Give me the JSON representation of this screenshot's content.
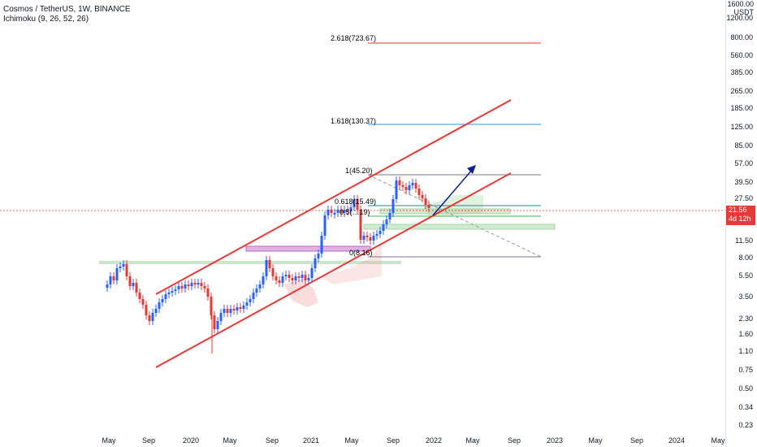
{
  "header": {
    "title": "Cosmos / TetherUS, 1W, BINANCE",
    "indicator": "Ichimoku (9, 26, 52, 26)"
  },
  "price_axis": {
    "unit_top": "1600.00",
    "unit_label": "USDT",
    "ticks": [
      "1200.00",
      "800.00",
      "560.00",
      "385.00",
      "265.00",
      "185.00",
      "125.00",
      "85.00",
      "57.00",
      "39.50",
      "27.50",
      "11.50",
      "8.00",
      "5.50",
      "3.50",
      "2.30",
      "1.60",
      "1.10",
      "0.75",
      "0.50",
      "0.34",
      "0.23"
    ],
    "current_price": "21.56",
    "countdown": "4d 12h"
  },
  "time_axis": {
    "ticks": [
      "May",
      "Sep",
      "2020",
      "May",
      "Sep",
      "2021",
      "May",
      "Sep",
      "2022",
      "May",
      "Sep",
      "2023",
      "May",
      "Sep",
      "2024",
      "May"
    ]
  },
  "fib_labels": {
    "f2618": "2.618(723.67)",
    "f1618": "1.618(130.37)",
    "f1": "1(45.20)",
    "f0618": "0.618(15.49)",
    "f05": "0.5(…19)",
    "f0": "0(8.16)"
  },
  "colors": {
    "up": "#2962ff",
    "down": "#e53935",
    "channel": "#e53935",
    "arrow": "#0d1f8c",
    "fib_2618": "#e53935",
    "fib_1618": "#2196f3",
    "fib_1": "#787b86",
    "fib_0618": "#089981",
    "fib_05": "#4caf50",
    "fib_0": "#787b86",
    "zone_green": "#a5d6a7",
    "zone_purple": "#ce93d8",
    "price_line": "#e53935"
  }
}
